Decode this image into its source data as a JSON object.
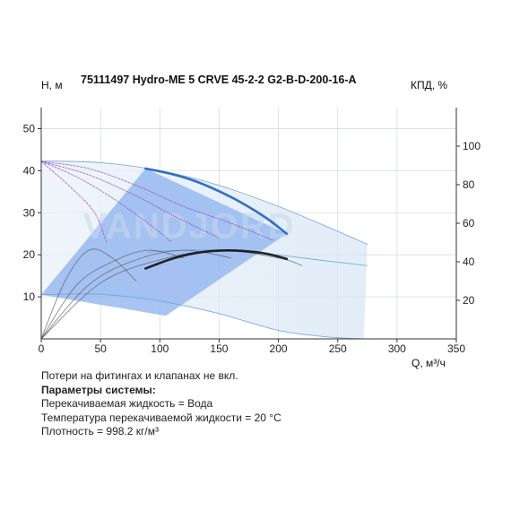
{
  "chart_data": {
    "type": "line",
    "title": "75111497 Hydro-ME 5 CRVE 45-2-2 G2-B-D-200-16-A",
    "ylabel": "Н, м",
    "y2label": "КПД, %",
    "xlabel": "Q, м³/ч",
    "xlim": [
      0,
      350
    ],
    "ylim": [
      0,
      55
    ],
    "y2lim": [
      0,
      120
    ],
    "x_ticks": [
      "0",
      "50",
      "100",
      "150",
      "200",
      "250",
      "300",
      "350"
    ],
    "y_ticks": [
      "10",
      "20",
      "30",
      "40",
      "50"
    ],
    "y2_ticks": [
      "20",
      "40",
      "60",
      "80",
      "100"
    ],
    "grid": true,
    "watermark": "VANDJORD",
    "operating_area": [
      [
        0,
        10.5
      ],
      [
        88,
        40.5
      ],
      [
        207,
        25
      ],
      [
        105,
        5.5
      ]
    ],
    "series": [
      {
        "role": "head-max",
        "color": "#1f5fbf",
        "x": [
          88,
          110,
          130,
          150,
          170,
          190,
          207
        ],
        "y": [
          40.5,
          39.2,
          37.5,
          35.1,
          32.2,
          28.7,
          25
        ]
      },
      {
        "role": "efficiency",
        "color": "#111111",
        "x": [
          88,
          110,
          130,
          150,
          170,
          190,
          207
        ],
        "y": [
          36.5,
          41.5,
          44.5,
          45.8,
          45.6,
          44.2,
          41.5
        ]
      },
      {
        "role": "head-thin",
        "color": "#6fa3d8",
        "x": [
          0,
          50,
          100,
          150,
          200,
          240,
          275
        ],
        "y": [
          42.3,
          41.9,
          40.0,
          36.5,
          31.5,
          26.8,
          22.5
        ]
      },
      {
        "role": "head-thin",
        "color": "#6fa3d8",
        "x": [
          0,
          50,
          100,
          150,
          200,
          240,
          272
        ],
        "y": [
          10.5,
          10.6,
          9.0,
          6.0,
          2.0,
          0.5,
          0
        ]
      },
      {
        "role": "efficiency-thin",
        "color": "#6fa3d8",
        "x": [
          90,
          120,
          160,
          200,
          240,
          275
        ],
        "y": [
          45,
          46,
          45.8,
          43.5,
          40.5,
          38
        ]
      },
      {
        "role": "head-mid",
        "color": "#9a4fc2",
        "x": [
          0,
          40,
          80,
          120,
          160,
          195
        ],
        "y": [
          42.2,
          40.5,
          36.5,
          31.5,
          27.5,
          23.5
        ]
      },
      {
        "role": "head-mid",
        "color": "#9a4fc2",
        "x": [
          0,
          40,
          80,
          110,
          150
        ],
        "y": [
          42.2,
          39,
          34,
          29.5,
          24
        ]
      },
      {
        "role": "head-mid",
        "color": "#9a4fc2",
        "x": [
          0,
          30,
          60,
          90,
          110
        ],
        "y": [
          42.2,
          38.5,
          33.5,
          27.5,
          23
        ]
      },
      {
        "role": "head-mid",
        "color": "#9a4fc2",
        "x": [
          0,
          25,
          45,
          55
        ],
        "y": [
          42.2,
          36,
          30,
          23
        ]
      },
      {
        "role": "efficiency-mid",
        "color": "#555555",
        "x": [
          0,
          20,
          40,
          60,
          80
        ],
        "y": [
          0,
          30,
          46,
          42,
          30
        ]
      },
      {
        "role": "efficiency-mid",
        "color": "#555555",
        "x": [
          0,
          30,
          60,
          90,
          120
        ],
        "y": [
          0,
          28,
          40,
          46,
          42
        ]
      },
      {
        "role": "efficiency-mid",
        "color": "#555555",
        "x": [
          0,
          40,
          80,
          120,
          160
        ],
        "y": [
          0,
          28,
          41,
          46,
          42
        ]
      },
      {
        "role": "efficiency-mid",
        "color": "#555555",
        "x": [
          0,
          50,
          100,
          150,
          200,
          220
        ],
        "y": [
          0,
          29,
          41,
          46,
          42,
          38
        ]
      }
    ]
  },
  "notes": {
    "line1": "Потери на фитингах и клапанах не вкл.",
    "line2": "Параметры системы:",
    "line3": "Перекачиваемая жидкость = Вода",
    "line4": "Температура перекачиваемой жидкости = 20 °C",
    "line5": "Плотность = 998.2 кг/м³"
  }
}
